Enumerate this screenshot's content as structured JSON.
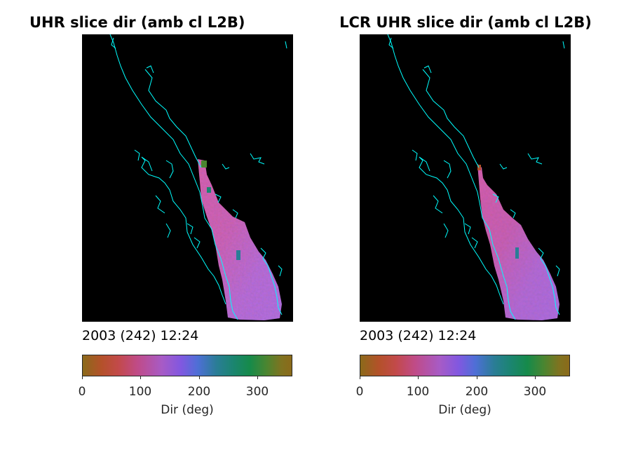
{
  "chart_data": [
    {
      "type": "heatmap",
      "title": "UHR slice dir (amb cl L2B)",
      "annotation": "2003 (242) 12:24",
      "colorbar": {
        "label": "Dir (deg)",
        "range": [
          0,
          360
        ],
        "ticks": [
          0,
          100,
          200,
          300
        ],
        "tick_labels": [
          "0",
          "100",
          "200",
          "300"
        ],
        "colormap": [
          "#8b6a1a",
          "#b4512a",
          "#c24a4a",
          "#c04b87",
          "#a75bc6",
          "#8158e0",
          "#4e6fd6",
          "#2a7d96",
          "#1b8570",
          "#168a4a",
          "#4b8530",
          "#7f7320"
        ]
      },
      "background_color": "#000000",
      "coastline_color": "#00ffff"
    },
    {
      "type": "heatmap",
      "title": "LCR UHR slice dir (amb cl L2B)",
      "annotation": "2003 (242) 12:24",
      "colorbar": {
        "label": "Dir (deg)",
        "range": [
          0,
          360
        ],
        "ticks": [
          0,
          100,
          200,
          300
        ],
        "tick_labels": [
          "0",
          "100",
          "200",
          "300"
        ],
        "colormap": [
          "#8b6a1a",
          "#b4512a",
          "#c24a4a",
          "#c04b87",
          "#a75bc6",
          "#8158e0",
          "#4e6fd6",
          "#2a7d96",
          "#1b8570",
          "#168a4a",
          "#4b8530",
          "#7f7320"
        ]
      },
      "background_color": "#000000",
      "coastline_color": "#00ffff"
    }
  ]
}
